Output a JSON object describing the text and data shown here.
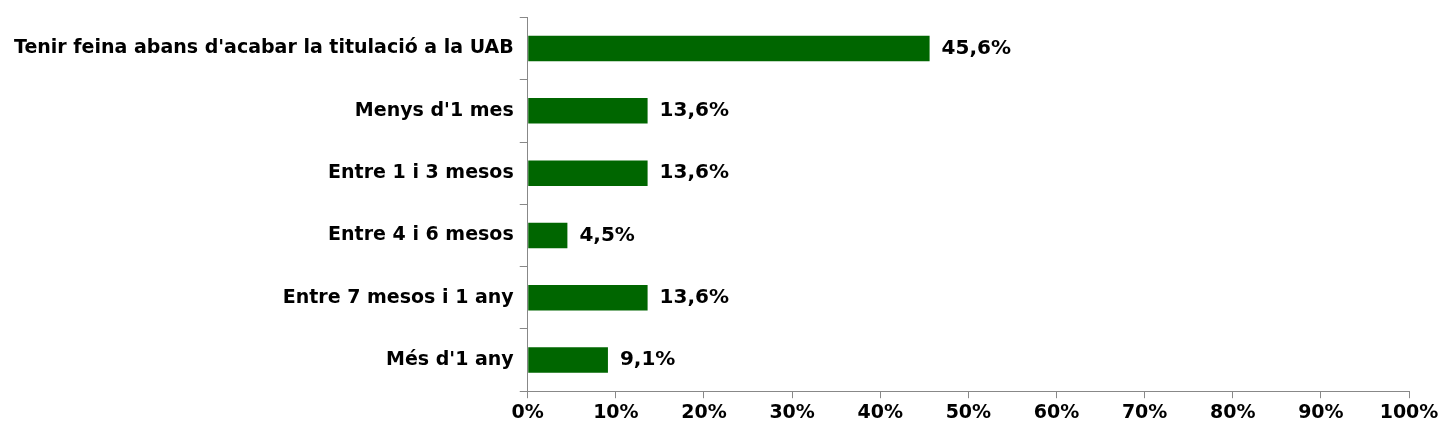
{
  "chart_data": {
    "type": "bar",
    "orientation": "horizontal",
    "categories": [
      "Tenir feina abans d'acabar la titulació a la UAB",
      "Menys d'1 mes",
      "Entre 1 i 3 mesos",
      "Entre 4 i 6 mesos",
      "Entre 7 mesos i 1 any",
      "Més d'1 any"
    ],
    "values": [
      45.6,
      13.6,
      13.6,
      4.5,
      13.6,
      9.1
    ],
    "value_labels": [
      "45,6%",
      "13,6%",
      "13,6%",
      "4,5%",
      "13,6%",
      "9,1%"
    ],
    "color": "#006600",
    "xlim": [
      0,
      100
    ],
    "xticks": [
      {
        "value": 0,
        "label": "0%"
      },
      {
        "value": 10,
        "label": "10%"
      },
      {
        "value": 20,
        "label": "20%"
      },
      {
        "value": 30,
        "label": "30%"
      },
      {
        "value": 40,
        "label": "40%"
      },
      {
        "value": 50,
        "label": "50%"
      },
      {
        "value": 60,
        "label": "60%"
      },
      {
        "value": 70,
        "label": "70%"
      },
      {
        "value": 80,
        "label": "80%"
      },
      {
        "value": 90,
        "label": "90%"
      },
      {
        "value": 100,
        "label": "100%"
      }
    ],
    "grid": false,
    "legend": false
  }
}
